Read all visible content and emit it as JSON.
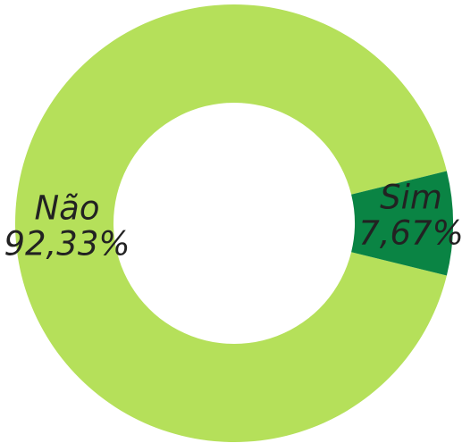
{
  "chart_data": {
    "type": "donut",
    "categories": [
      "Não",
      "Sim"
    ],
    "values": [
      92.33,
      7.67
    ],
    "value_labels": [
      "92,33%",
      "7,67%"
    ],
    "colors": [
      "#b5e05a",
      "#0a8444"
    ]
  }
}
